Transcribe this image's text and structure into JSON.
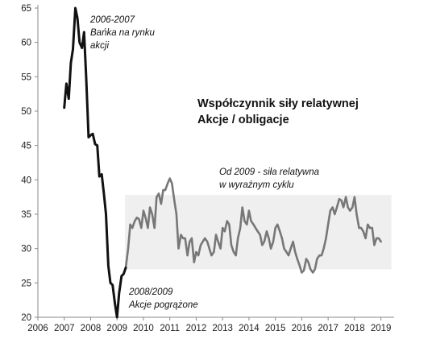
{
  "chart_data": {
    "type": "line",
    "title_lines": [
      "Współczynnik siły relatywnej",
      "Akcje / obligacje"
    ],
    "xlabel": "",
    "ylabel": "",
    "xlim": [
      2006,
      2019.5
    ],
    "ylim": [
      20,
      65
    ],
    "x_ticks": [
      "2006",
      "2007",
      "2008",
      "2009",
      "2010",
      "2011",
      "2012",
      "2013",
      "2014",
      "2015",
      "2016",
      "2017",
      "2018",
      "2019"
    ],
    "y_ticks": [
      "20",
      "25",
      "30",
      "35",
      "40",
      "45",
      "50",
      "55",
      "60",
      "65"
    ],
    "grid": false,
    "legend": "none",
    "highlight_band": {
      "x": [
        2009.3,
        2019.4
      ],
      "y": [
        27,
        37.8
      ],
      "color": "#efefef"
    },
    "series": [
      {
        "segment": "2006-2009",
        "color": "#111111",
        "x": [
          2007.0,
          2007.08,
          2007.17,
          2007.25,
          2007.33,
          2007.42,
          2007.5,
          2007.58,
          2007.67,
          2007.75,
          2007.83,
          2007.92,
          2008.0,
          2008.08,
          2008.17,
          2008.25,
          2008.33,
          2008.42,
          2008.5,
          2008.58,
          2008.67,
          2008.75,
          2008.83,
          2008.92,
          2009.0,
          2009.08,
          2009.17,
          2009.25,
          2009.33
        ],
        "y": [
          50.5,
          54.0,
          51.8,
          57.0,
          59.0,
          65.0,
          63.5,
          60.0,
          59.2,
          61.5,
          55.0,
          46.2,
          46.5,
          46.7,
          45.2,
          45.0,
          40.5,
          40.8,
          38.0,
          35.0,
          27.5,
          25.0,
          24.7,
          22.0,
          20.0,
          23.5,
          26.0,
          26.3,
          27.2
        ]
      },
      {
        "segment": "2009-2019",
        "color": "#777777",
        "x": [
          2009.33,
          2009.42,
          2009.5,
          2009.58,
          2009.67,
          2009.75,
          2009.83,
          2009.92,
          2010.0,
          2010.08,
          2010.17,
          2010.25,
          2010.33,
          2010.42,
          2010.5,
          2010.58,
          2010.67,
          2010.75,
          2010.83,
          2010.92,
          2011.0,
          2011.08,
          2011.17,
          2011.25,
          2011.33,
          2011.42,
          2011.5,
          2011.58,
          2011.67,
          2011.75,
          2011.83,
          2011.92,
          2012.0,
          2012.08,
          2012.17,
          2012.25,
          2012.33,
          2012.42,
          2012.5,
          2012.58,
          2012.67,
          2012.75,
          2012.83,
          2012.92,
          2013.0,
          2013.08,
          2013.17,
          2013.25,
          2013.33,
          2013.42,
          2013.5,
          2013.58,
          2013.67,
          2013.75,
          2013.83,
          2013.92,
          2014.0,
          2014.08,
          2014.17,
          2014.25,
          2014.33,
          2014.42,
          2014.5,
          2014.58,
          2014.67,
          2014.75,
          2014.83,
          2014.92,
          2015.0,
          2015.08,
          2015.17,
          2015.25,
          2015.33,
          2015.42,
          2015.5,
          2015.58,
          2015.67,
          2015.75,
          2015.83,
          2015.92,
          2016.0,
          2016.08,
          2016.17,
          2016.25,
          2016.33,
          2016.42,
          2016.5,
          2016.58,
          2016.67,
          2016.75,
          2016.83,
          2016.92,
          2017.0,
          2017.08,
          2017.17,
          2017.25,
          2017.33,
          2017.42,
          2017.5,
          2017.58,
          2017.67,
          2017.75,
          2017.83,
          2017.92,
          2018.0,
          2018.08,
          2018.17,
          2018.25,
          2018.33,
          2018.42,
          2018.5,
          2018.58,
          2018.67,
          2018.75,
          2018.83,
          2018.92,
          2019.0
        ],
        "y": [
          27.2,
          30.0,
          33.5,
          33.0,
          34.0,
          34.5,
          34.3,
          33.0,
          35.5,
          34.5,
          33.0,
          36.0,
          35.0,
          33.0,
          37.5,
          38.0,
          36.5,
          38.5,
          38.5,
          39.5,
          40.2,
          39.5,
          37.0,
          35.0,
          30.0,
          32.0,
          31.5,
          31.5,
          29.0,
          31.0,
          31.5,
          28.0,
          29.5,
          29.0,
          30.5,
          31.0,
          31.5,
          31.0,
          30.0,
          29.0,
          29.5,
          32.0,
          31.0,
          30.0,
          33.0,
          32.5,
          34.0,
          33.5,
          30.5,
          29.5,
          29.0,
          31.5,
          33.0,
          36.0,
          34.0,
          33.5,
          35.5,
          34.0,
          33.5,
          33.0,
          32.5,
          32.0,
          30.5,
          31.0,
          32.5,
          31.5,
          30.0,
          31.0,
          33.0,
          33.5,
          32.5,
          31.5,
          30.0,
          29.5,
          29.0,
          30.0,
          31.0,
          29.5,
          28.5,
          27.5,
          26.5,
          26.8,
          28.5,
          28.0,
          27.0,
          26.5,
          27.0,
          28.5,
          29.0,
          29.0,
          30.0,
          31.5,
          33.5,
          35.5,
          36.0,
          35.0,
          36.0,
          37.2,
          37.0,
          36.0,
          37.5,
          36.0,
          35.5,
          36.0,
          37.5,
          35.0,
          33.0,
          33.0,
          32.5,
          31.5,
          33.5,
          33.0,
          33.0,
          30.5,
          31.5,
          31.5,
          31.0
        ]
      }
    ],
    "annotations": [
      {
        "lines": [
          "2006-2007",
          "Bańka na rynku",
          "akcji"
        ]
      },
      {
        "lines": [
          "2008/2009",
          "Akcje pogrążone"
        ]
      },
      {
        "lines": [
          "Od 2009 - siła relatywna",
          "w wyraźnym cyklu"
        ]
      }
    ],
    "colors": {
      "axis": "#888888",
      "early_line": "#111111",
      "later_line": "#777777",
      "band": "#efefef"
    }
  }
}
